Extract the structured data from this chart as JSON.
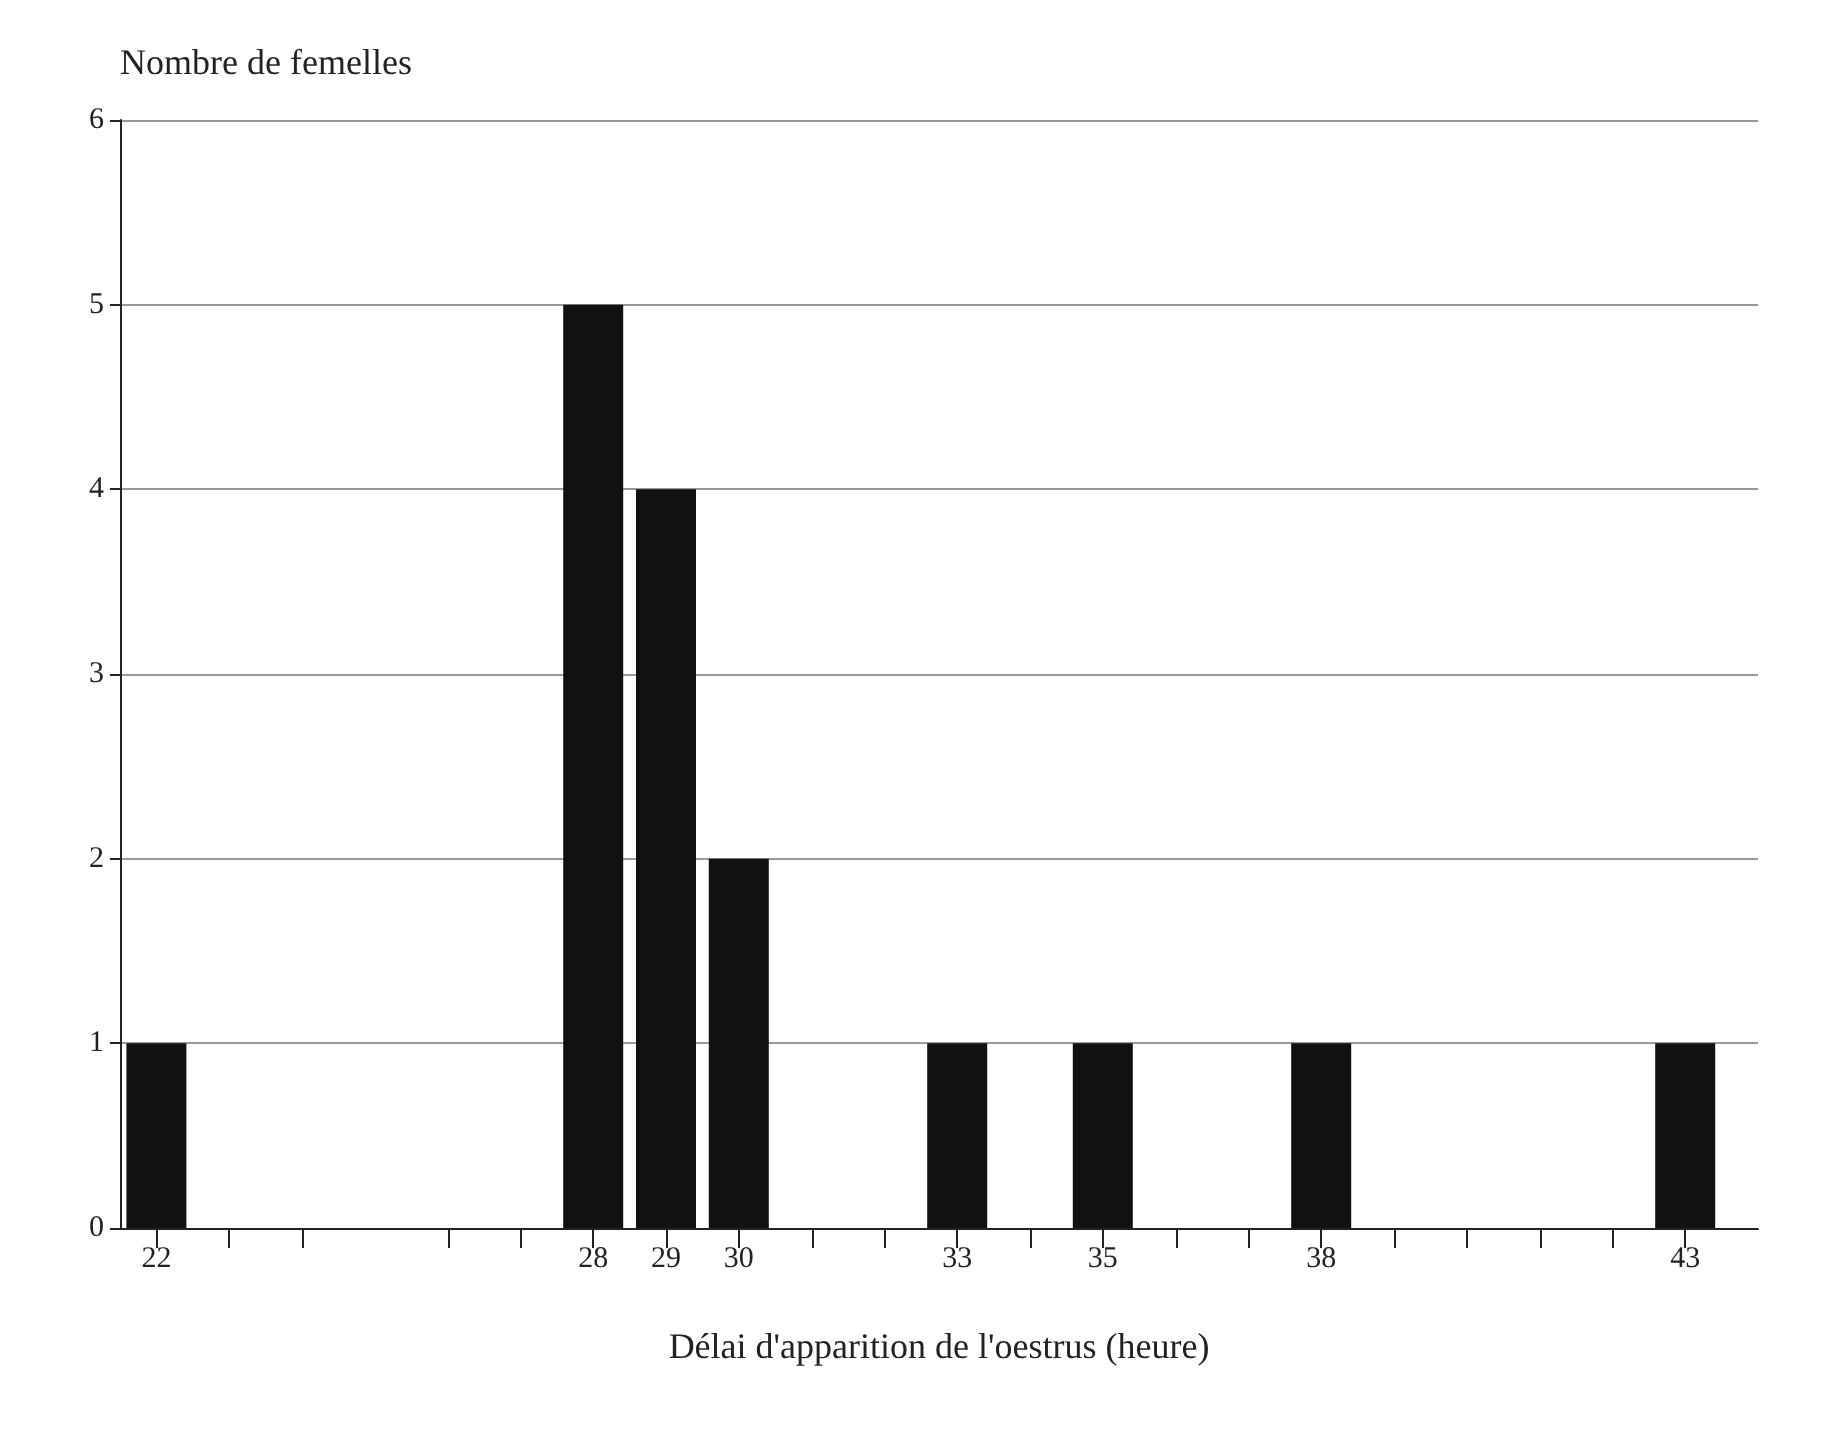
{
  "chart_data": {
    "type": "bar",
    "ylabel": "Nombre de femelles",
    "xlabel": "Délai d'apparition de l'oestrus (heure)",
    "x": [
      22,
      28,
      29,
      30,
      33,
      35,
      38,
      43
    ],
    "values": [
      1,
      5,
      4,
      2,
      1,
      1,
      1,
      1
    ],
    "color": "#111111",
    "xlim": [
      21.5,
      44
    ],
    "xticks": [
      22,
      {
        "value": 23,
        "label": null
      },
      {
        "value": 24,
        "label": null
      },
      {
        "value": 26,
        "label": null
      },
      {
        "value": 27,
        "label": null
      },
      28,
      29,
      30,
      {
        "value": 31,
        "label": null
      },
      {
        "value": 32,
        "label": null
      },
      33,
      {
        "value": 34,
        "label": null
      },
      35,
      {
        "value": 36,
        "label": null
      },
      {
        "value": 37,
        "label": null
      },
      38,
      {
        "value": 39,
        "label": null
      },
      {
        "value": 40,
        "label": null
      },
      {
        "value": 41,
        "label": null
      },
      {
        "value": 42,
        "label": null
      },
      43
    ],
    "ylim": [
      0,
      6
    ],
    "yticks": [
      0,
      1,
      2,
      3,
      4,
      5,
      6
    ],
    "grid": "y"
  }
}
